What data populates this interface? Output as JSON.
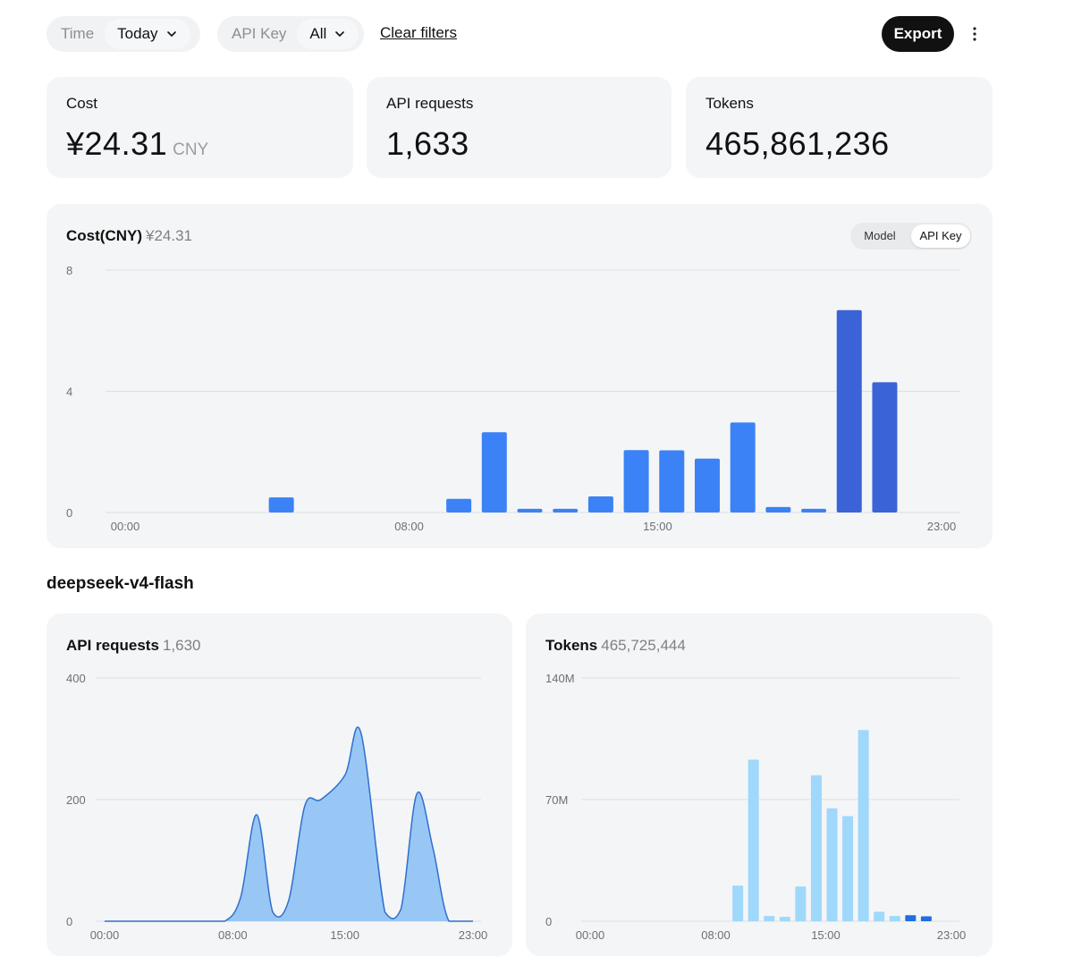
{
  "filters": {
    "time_label": "Time",
    "time_value": "Today",
    "apikey_label": "API Key",
    "apikey_value": "All",
    "clear_label": "Clear filters"
  },
  "actions": {
    "export_label": "Export",
    "more_icon": "more-vertical-icon"
  },
  "stats": {
    "cost_label": "Cost",
    "cost_value": "¥24.31",
    "cost_unit": "CNY",
    "requests_label": "API requests",
    "requests_value": "1,633",
    "tokens_label": "Tokens",
    "tokens_value": "465,861,236"
  },
  "cost_chart_header": {
    "title": "Cost(CNY)",
    "subtitle": "¥24.31",
    "toggle_options": [
      "Model",
      "API Key"
    ],
    "toggle_active": "API Key"
  },
  "model_section": {
    "heading": "deepseek-v4-flash",
    "requests_title": "API requests",
    "requests_total": "1,630",
    "tokens_title": "Tokens",
    "tokens_total": "465,725,444"
  },
  "colors": {
    "bar_blue": "#3b82f6",
    "bar_dark_blue": "#3a63d8",
    "area_fill": "#8ec2f5",
    "area_stroke": "#2f6fcf",
    "token_light": "#9fd8fb",
    "token_dark": "#1f6fe0"
  },
  "chart_data": [
    {
      "type": "bar",
      "title": "Cost(CNY) ¥24.31",
      "x_ticks": [
        "00:00",
        "08:00",
        "15:00",
        "23:00"
      ],
      "y_ticks": [
        "0",
        "4",
        "8"
      ],
      "ylim": [
        0,
        8
      ],
      "x_hours": [
        4,
        9,
        10,
        11,
        12,
        13,
        14,
        15,
        16,
        17,
        18,
        19,
        20,
        21
      ],
      "values": [
        0.5,
        0.45,
        2.65,
        0.12,
        0.12,
        0.53,
        2.06,
        2.05,
        1.78,
        2.97,
        0.18,
        0.12,
        6.68,
        4.3
      ],
      "highlight_from_hour": 20,
      "grid": true,
      "legend": "none"
    },
    {
      "type": "area",
      "title": "API requests 1,630",
      "x_ticks": [
        "00:00",
        "08:00",
        "15:00",
        "23:00"
      ],
      "y_ticks": [
        "0",
        "200",
        "400"
      ],
      "ylim": [
        0,
        400
      ],
      "x_hours": [
        0,
        3,
        6,
        7.5,
        8.5,
        9.5,
        10.5,
        11.5,
        12.5,
        13.5,
        15,
        16,
        17.5,
        18.5,
        19.5,
        20.5,
        21.5,
        23
      ],
      "values": [
        0,
        0,
        0,
        0,
        40,
        175,
        15,
        35,
        190,
        200,
        240,
        310,
        15,
        20,
        210,
        120,
        0,
        0
      ],
      "grid": true,
      "legend": "none"
    },
    {
      "type": "bar",
      "title": "Tokens 465,725,444",
      "x_ticks": [
        "00:00",
        "08:00",
        "15:00",
        "23:00"
      ],
      "y_ticks": [
        "0",
        "70M",
        "140M"
      ],
      "ylim": [
        0,
        140000000
      ],
      "series": [
        {
          "x_hours": [
            9,
            10,
            11,
            12,
            13,
            14,
            15,
            16,
            17,
            18,
            19,
            20,
            21
          ],
          "values": [
            20500000,
            93000000,
            3000000,
            2500000,
            20000000,
            84000000,
            65000000,
            60500000,
            110000000,
            5500000,
            3000000,
            500000,
            500000
          ]
        },
        {
          "x_hours": [
            20,
            21
          ],
          "values": [
            3500000,
            2800000
          ]
        }
      ],
      "grid": true,
      "legend": "none"
    }
  ]
}
